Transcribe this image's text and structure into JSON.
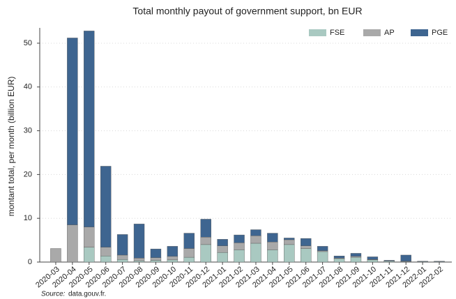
{
  "chart_data": {
    "type": "stacked_bar",
    "title": "Total monthly payout of government support, bn EUR",
    "y_label": "montant total, per month (billion EUR)",
    "source_label": "Source:",
    "source": "data.gouv.fr.",
    "categories": [
      "2020-03",
      "2020-04",
      "2020-05",
      "2020-06",
      "2020-07",
      "2020-08",
      "2020-09",
      "2020-10",
      "2020-11",
      "2020-12",
      "2021-01",
      "2021-02",
      "2021-03",
      "2021-04",
      "2021-05",
      "2021-06",
      "2021-07",
      "2021-08",
      "2021-09",
      "2021-10",
      "2021-11",
      "2021-12",
      "2022-01",
      "2022-02"
    ],
    "series": [
      {
        "name": "FSE",
        "color": "#a9c9c1",
        "values": [
          0,
          0,
          3.4,
          1.4,
          0.6,
          0.3,
          0.4,
          0.5,
          1.1,
          4.0,
          2.2,
          2.8,
          4.3,
          2.8,
          4.0,
          3.1,
          2.4,
          0.8,
          1.1,
          0.5,
          0.2,
          0.1,
          0.1,
          0.1
        ]
      },
      {
        "name": "AP",
        "color": "#a9a9a9",
        "values": [
          3.1,
          8.5,
          4.6,
          2.0,
          1.0,
          0.6,
          0.6,
          0.8,
          2.0,
          1.7,
          1.5,
          1.6,
          1.7,
          1.8,
          1.1,
          0.6,
          0.2,
          0.1,
          0.2,
          0.1,
          0.05,
          0.1,
          0,
          0
        ]
      },
      {
        "name": "PGE",
        "color": "#3e6590",
        "values": [
          0,
          42.7,
          44.8,
          18.5,
          4.7,
          7.8,
          2.0,
          2.3,
          3.5,
          4.1,
          1.5,
          1.8,
          1.4,
          2.0,
          0.4,
          1.7,
          1.0,
          0.5,
          0.7,
          0.6,
          0.15,
          1.4,
          0.1,
          0.1
        ]
      }
    ],
    "ylim": [
      0,
      53.5
    ],
    "yticks": [
      0,
      10,
      20,
      30,
      40,
      50
    ],
    "grid": true,
    "legend": "top-right"
  }
}
